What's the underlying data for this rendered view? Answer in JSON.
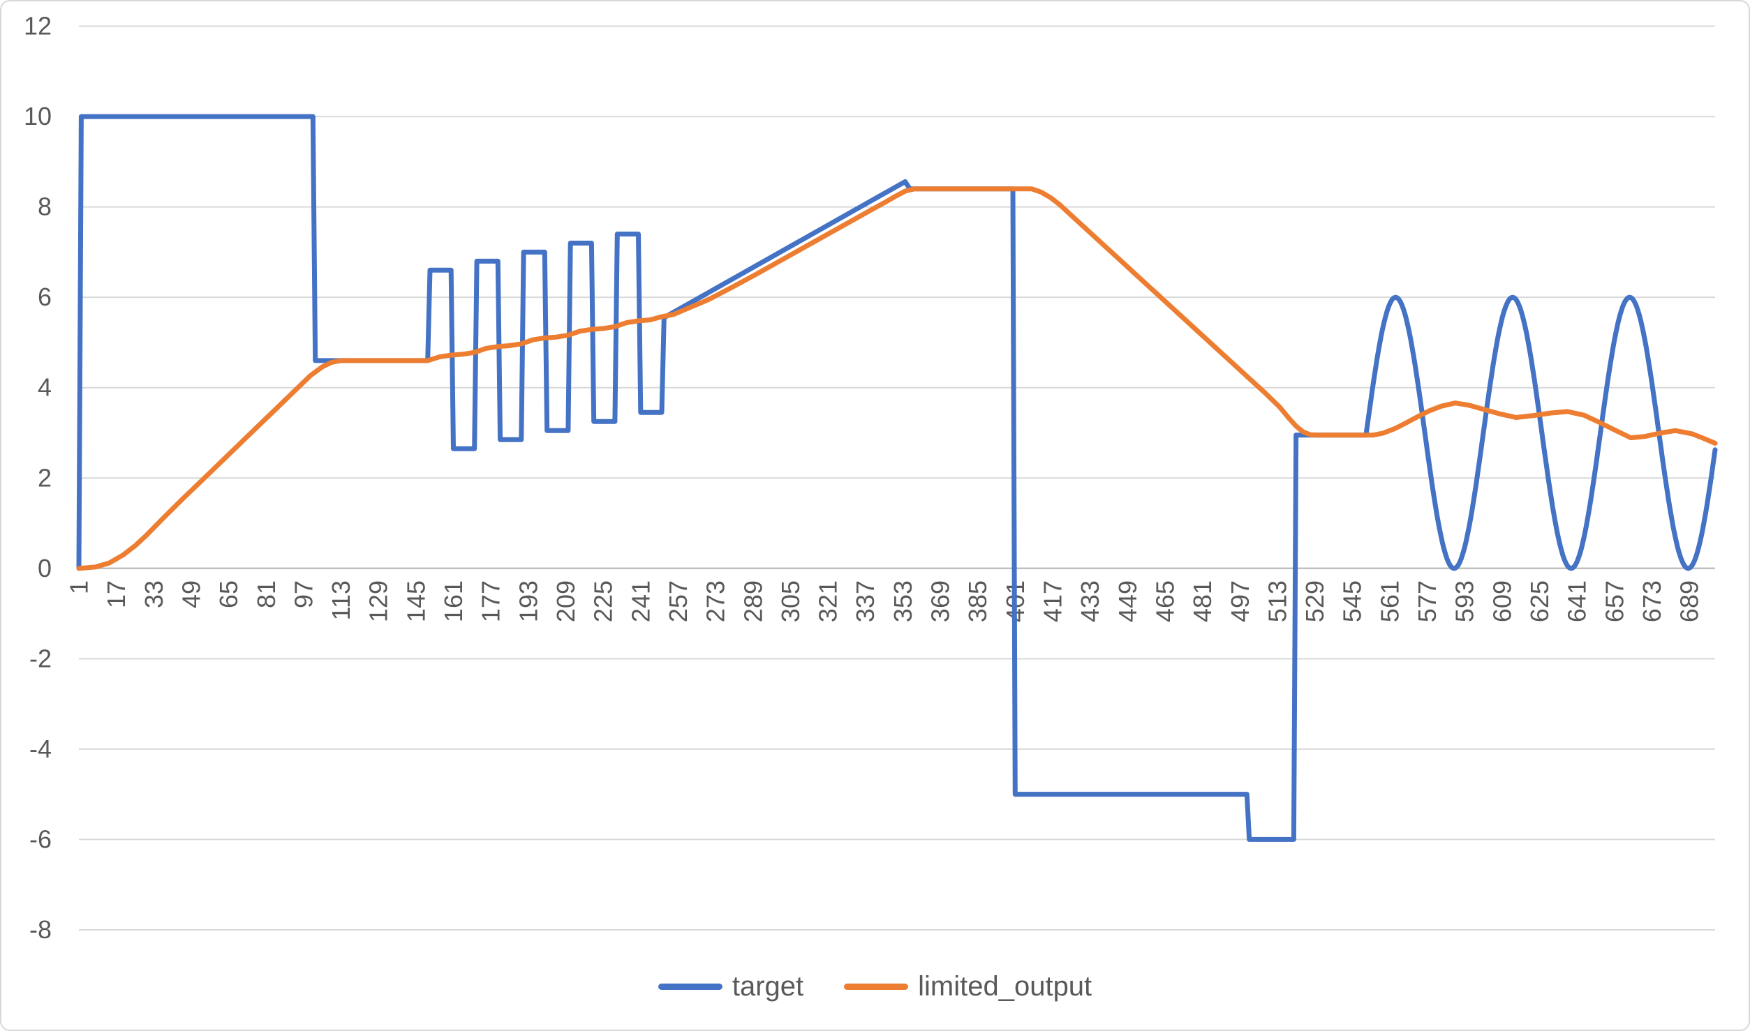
{
  "chart": {
    "background": "#ffffff",
    "frame_border_color": "#d8d8d8",
    "grid_color": "#d9d9d9",
    "axis_line_color": "#c0c0c0",
    "tick_label_color": "#595959",
    "tick_font_size": 36,
    "legend_font_size": 40
  },
  "chart_data": {
    "type": "line",
    "title": "",
    "xlabel": "",
    "ylabel": "",
    "grid": "horizontal",
    "legend_position": "bottom",
    "ylim": [
      -8,
      12
    ],
    "y_ticks": [
      12,
      10,
      8,
      6,
      4,
      2,
      0,
      -2,
      -4,
      -6,
      -8
    ],
    "x_range": [
      1,
      700
    ],
    "x_tick_labels": [
      1,
      17,
      33,
      49,
      65,
      81,
      97,
      113,
      129,
      145,
      161,
      177,
      193,
      209,
      225,
      241,
      257,
      273,
      289,
      305,
      321,
      337,
      353,
      369,
      385,
      401,
      417,
      433,
      449,
      465,
      481,
      497,
      513,
      529,
      545,
      561,
      577,
      593,
      609,
      625,
      641,
      657,
      673,
      689
    ],
    "series": [
      {
        "name": "target",
        "color": "#4472C4",
        "segments": [
          {
            "type": "points",
            "points": [
              [
                1,
                0
              ],
              [
                2,
                10
              ],
              [
                101,
                10
              ],
              [
                102,
                4.6
              ],
              [
                150,
                4.6
              ],
              [
                151,
                6.6
              ],
              [
                160,
                6.6
              ],
              [
                161,
                2.65
              ],
              [
                170,
                2.65
              ],
              [
                171,
                6.8
              ],
              [
                180,
                6.8
              ],
              [
                181,
                2.85
              ],
              [
                190,
                2.85
              ],
              [
                191,
                7.0
              ],
              [
                200,
                7.0
              ],
              [
                201,
                3.05
              ],
              [
                210,
                3.05
              ],
              [
                211,
                7.2
              ],
              [
                220,
                7.2
              ],
              [
                221,
                3.25
              ],
              [
                230,
                3.25
              ],
              [
                231,
                7.4
              ],
              [
                240,
                7.4
              ],
              [
                241,
                3.45
              ],
              [
                250,
                3.45
              ],
              [
                251,
                5.55
              ],
              [
                354,
                8.56
              ],
              [
                356,
                8.4
              ],
              [
                400,
                8.4
              ],
              [
                401,
                -5
              ],
              [
                500,
                -5
              ],
              [
                501,
                -6
              ],
              [
                520,
                -6
              ],
              [
                521,
                2.95
              ],
              [
                551,
                2.95
              ]
            ]
          },
          {
            "type": "sine",
            "x_start": 551,
            "x_end": 700,
            "midline": 3,
            "amplitude": 3,
            "period": 50
          }
        ]
      },
      {
        "name": "limited_output",
        "color": "#ED7D31",
        "segments": [
          {
            "type": "points",
            "points": [
              [
                1,
                0
              ],
              [
                8,
                0.03
              ],
              [
                14,
                0.12
              ],
              [
                20,
                0.3
              ],
              [
                25,
                0.5
              ],
              [
                30,
                0.74
              ],
              [
                37,
                1.11
              ],
              [
                45,
                1.52
              ],
              [
                55,
                2.02
              ],
              [
                65,
                2.52
              ],
              [
                75,
                3.02
              ],
              [
                85,
                3.52
              ],
              [
                95,
                4.02
              ],
              [
                100,
                4.27
              ],
              [
                105,
                4.46
              ],
              [
                109,
                4.56
              ],
              [
                113,
                4.6
              ],
              [
                150,
                4.6
              ],
              [
                155,
                4.68
              ],
              [
                160,
                4.72
              ],
              [
                165,
                4.74
              ],
              [
                170,
                4.78
              ],
              [
                175,
                4.87
              ],
              [
                180,
                4.91
              ],
              [
                185,
                4.93
              ],
              [
                190,
                4.97
              ],
              [
                195,
                5.06
              ],
              [
                200,
                5.1
              ],
              [
                205,
                5.12
              ],
              [
                210,
                5.16
              ],
              [
                215,
                5.25
              ],
              [
                220,
                5.29
              ],
              [
                225,
                5.31
              ],
              [
                230,
                5.35
              ],
              [
                235,
                5.44
              ],
              [
                240,
                5.48
              ],
              [
                245,
                5.5
              ],
              [
                250,
                5.57
              ],
              [
                255,
                5.62
              ],
              [
                260,
                5.73
              ],
              [
                270,
                5.95
              ],
              [
                280,
                6.22
              ],
              [
                290,
                6.5
              ],
              [
                300,
                6.79
              ],
              [
                310,
                7.08
              ],
              [
                320,
                7.37
              ],
              [
                330,
                7.66
              ],
              [
                340,
                7.95
              ],
              [
                346,
                8.12
              ],
              [
                350,
                8.24
              ],
              [
                354,
                8.35
              ],
              [
                358,
                8.4
              ],
              [
                408,
                8.4
              ],
              [
                412,
                8.33
              ],
              [
                416,
                8.21
              ],
              [
                420,
                8.05
              ],
              [
                440,
                7.1
              ],
              [
                460,
                6.15
              ],
              [
                480,
                5.2
              ],
              [
                500,
                4.25
              ],
              [
                508,
                3.87
              ],
              [
                514,
                3.57
              ],
              [
                518,
                3.32
              ],
              [
                521,
                3.15
              ],
              [
                524,
                3.02
              ],
              [
                527,
                2.96
              ],
              [
                530,
                2.95
              ],
              [
                554,
                2.95
              ],
              [
                558,
                2.99
              ],
              [
                563,
                3.09
              ],
              [
                568,
                3.22
              ],
              [
                573,
                3.36
              ],
              [
                578,
                3.49
              ],
              [
                583,
                3.59
              ],
              [
                589,
                3.66
              ],
              [
                595,
                3.61
              ],
              [
                601,
                3.52
              ],
              [
                608,
                3.42
              ],
              [
                615,
                3.34
              ],
              [
                622,
                3.38
              ],
              [
                630,
                3.44
              ],
              [
                637,
                3.47
              ],
              [
                644,
                3.39
              ],
              [
                651,
                3.22
              ],
              [
                658,
                3.04
              ],
              [
                664,
                2.89
              ],
              [
                670,
                2.92
              ],
              [
                677,
                3.0
              ],
              [
                683,
                3.05
              ],
              [
                690,
                2.98
              ],
              [
                695,
                2.88
              ],
              [
                700,
                2.77
              ]
            ]
          }
        ]
      }
    ]
  }
}
